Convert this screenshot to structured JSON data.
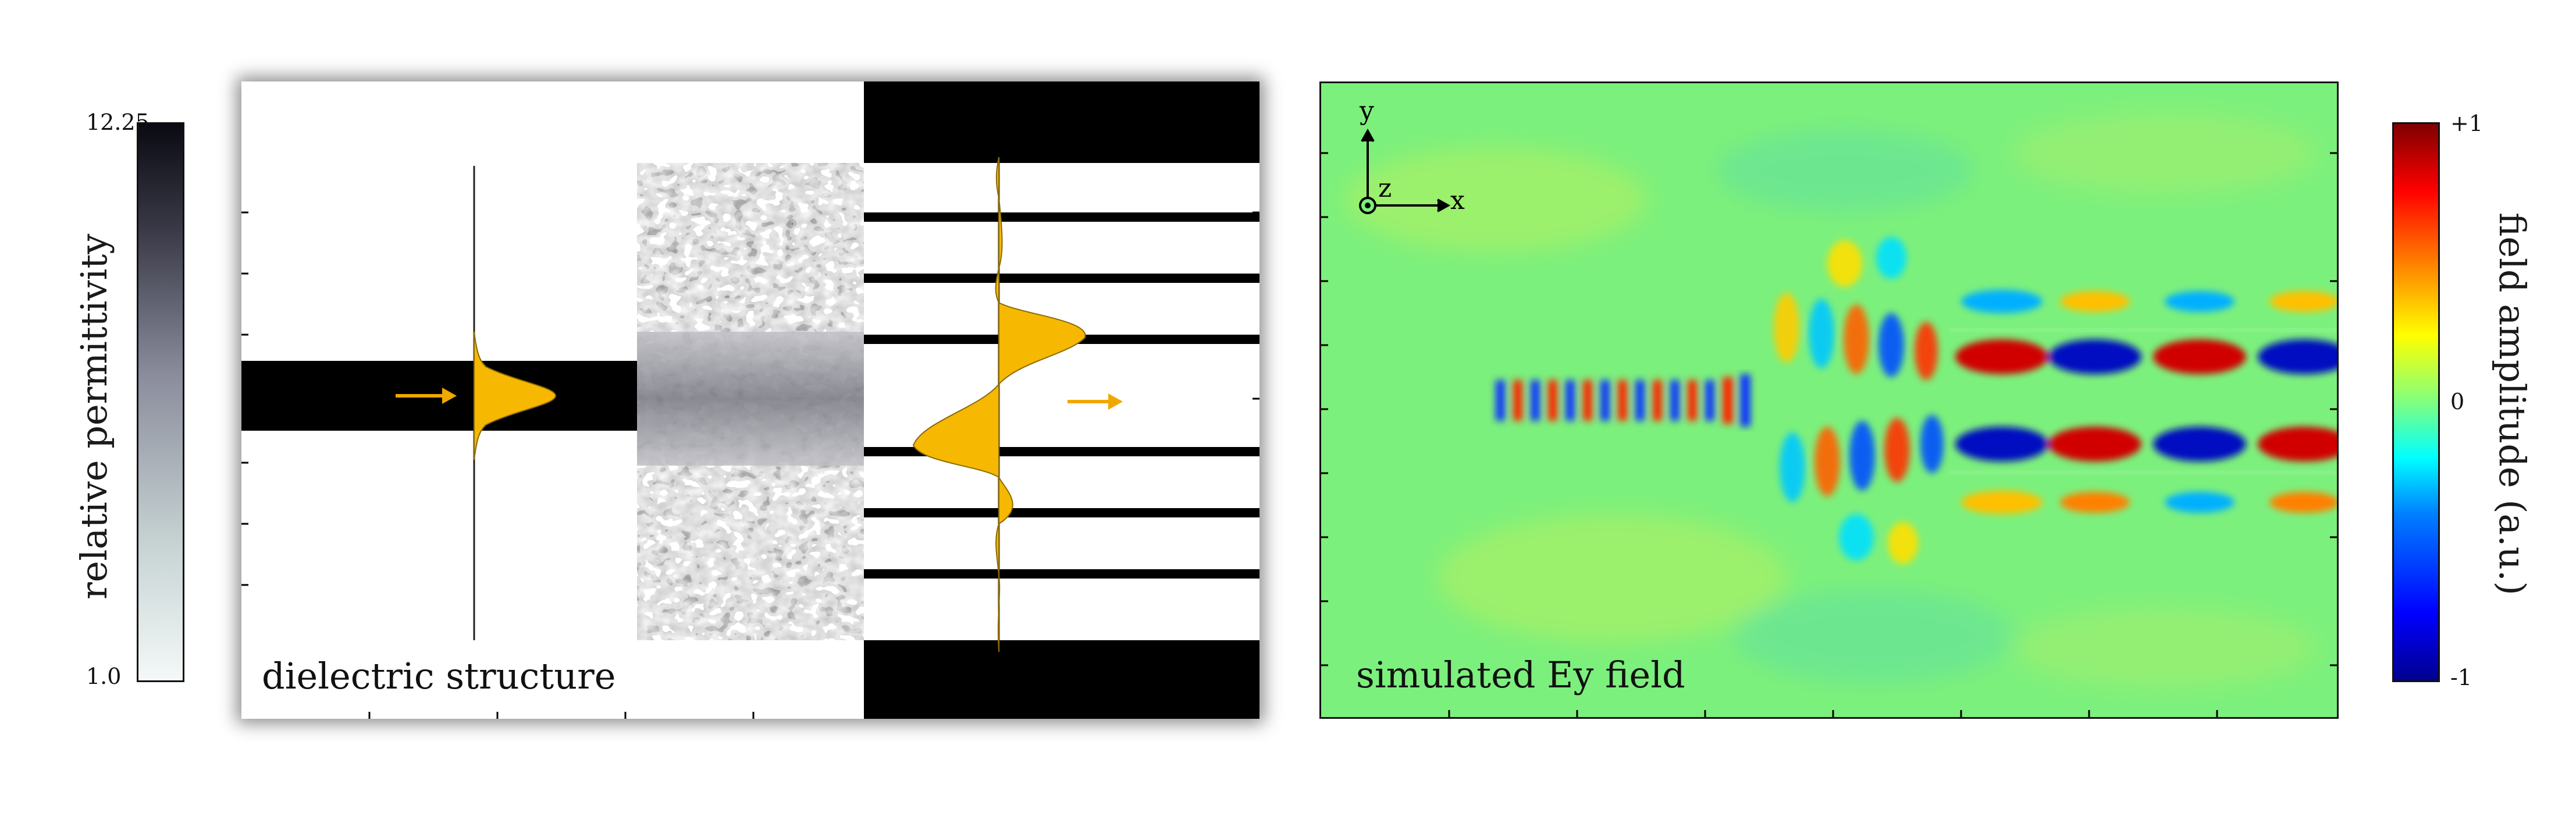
{
  "left_colorbar": {
    "title": "relative permittivity",
    "max_label": "12.25",
    "min_label": "1.0",
    "color_low": "#f4f8f8",
    "color_mid": "#8a8c9c",
    "color_high": "#0a0a12"
  },
  "right_colorbar": {
    "title": "field amplitude (a.u.)",
    "max_label": "+1",
    "mid_label": "0",
    "min_label": "-1",
    "colormap": "jet"
  },
  "panels": {
    "structure": {
      "caption": "dielectric structure",
      "waveguide_color": "#000000",
      "mode_fill": "#f6b800",
      "arrow_color": "#f0a800"
    },
    "field": {
      "caption": "simulated Ey field",
      "background": "#7ef07a",
      "axes": {
        "y": "y",
        "x": "x",
        "z": "z"
      }
    }
  }
}
